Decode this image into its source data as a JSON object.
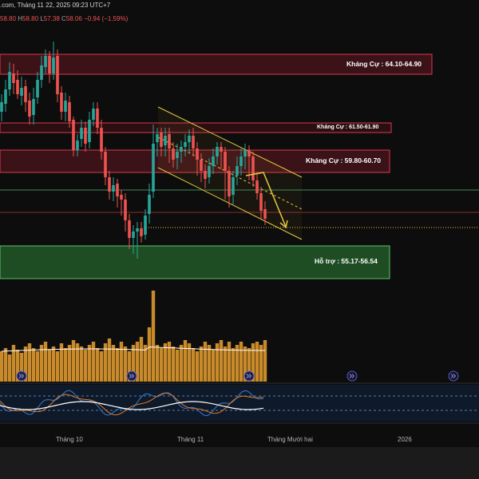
{
  "header": {
    "source_tail": ".com,",
    "date": "Tháng 11 22, 2025 09:23 UTC+7",
    "o_value": "58.80",
    "h_label": "H",
    "h_value": "58.80",
    "l_label": "L",
    "l_value": "57.38",
    "c_label": "C",
    "c_value": "58.06",
    "change": "−0.94 (−1.59%)"
  },
  "zones": {
    "resistance_top": "Kháng Cự : 64.10-64.90",
    "resistance_mid": "Kháng Cự : 61.50-61.90",
    "resistance_low": "Kháng Cự : 59.80-60.70",
    "support": "Hỗ trợ : 55.17-56.54"
  },
  "colors": {
    "background": "#0d0d0d",
    "candle_up": "#26a69a",
    "candle_down": "#ef5350",
    "resistance_fill": "#3a1218",
    "resistance_border": "#d9394b",
    "support_fill": "#1e4d24",
    "support_border": "#5fbf6a",
    "channel": "#e8c840",
    "volume": "#c98a2a",
    "oscillator_fast": "#3a7bd5",
    "oscillator_slow": "#e07a2a"
  },
  "x_axis": {
    "labels": [
      "Tháng 10",
      "Tháng 11",
      "Tháng Mười hai",
      "2026"
    ]
  },
  "icons": {
    "event_marker": "double-chevron-right-icon"
  }
}
